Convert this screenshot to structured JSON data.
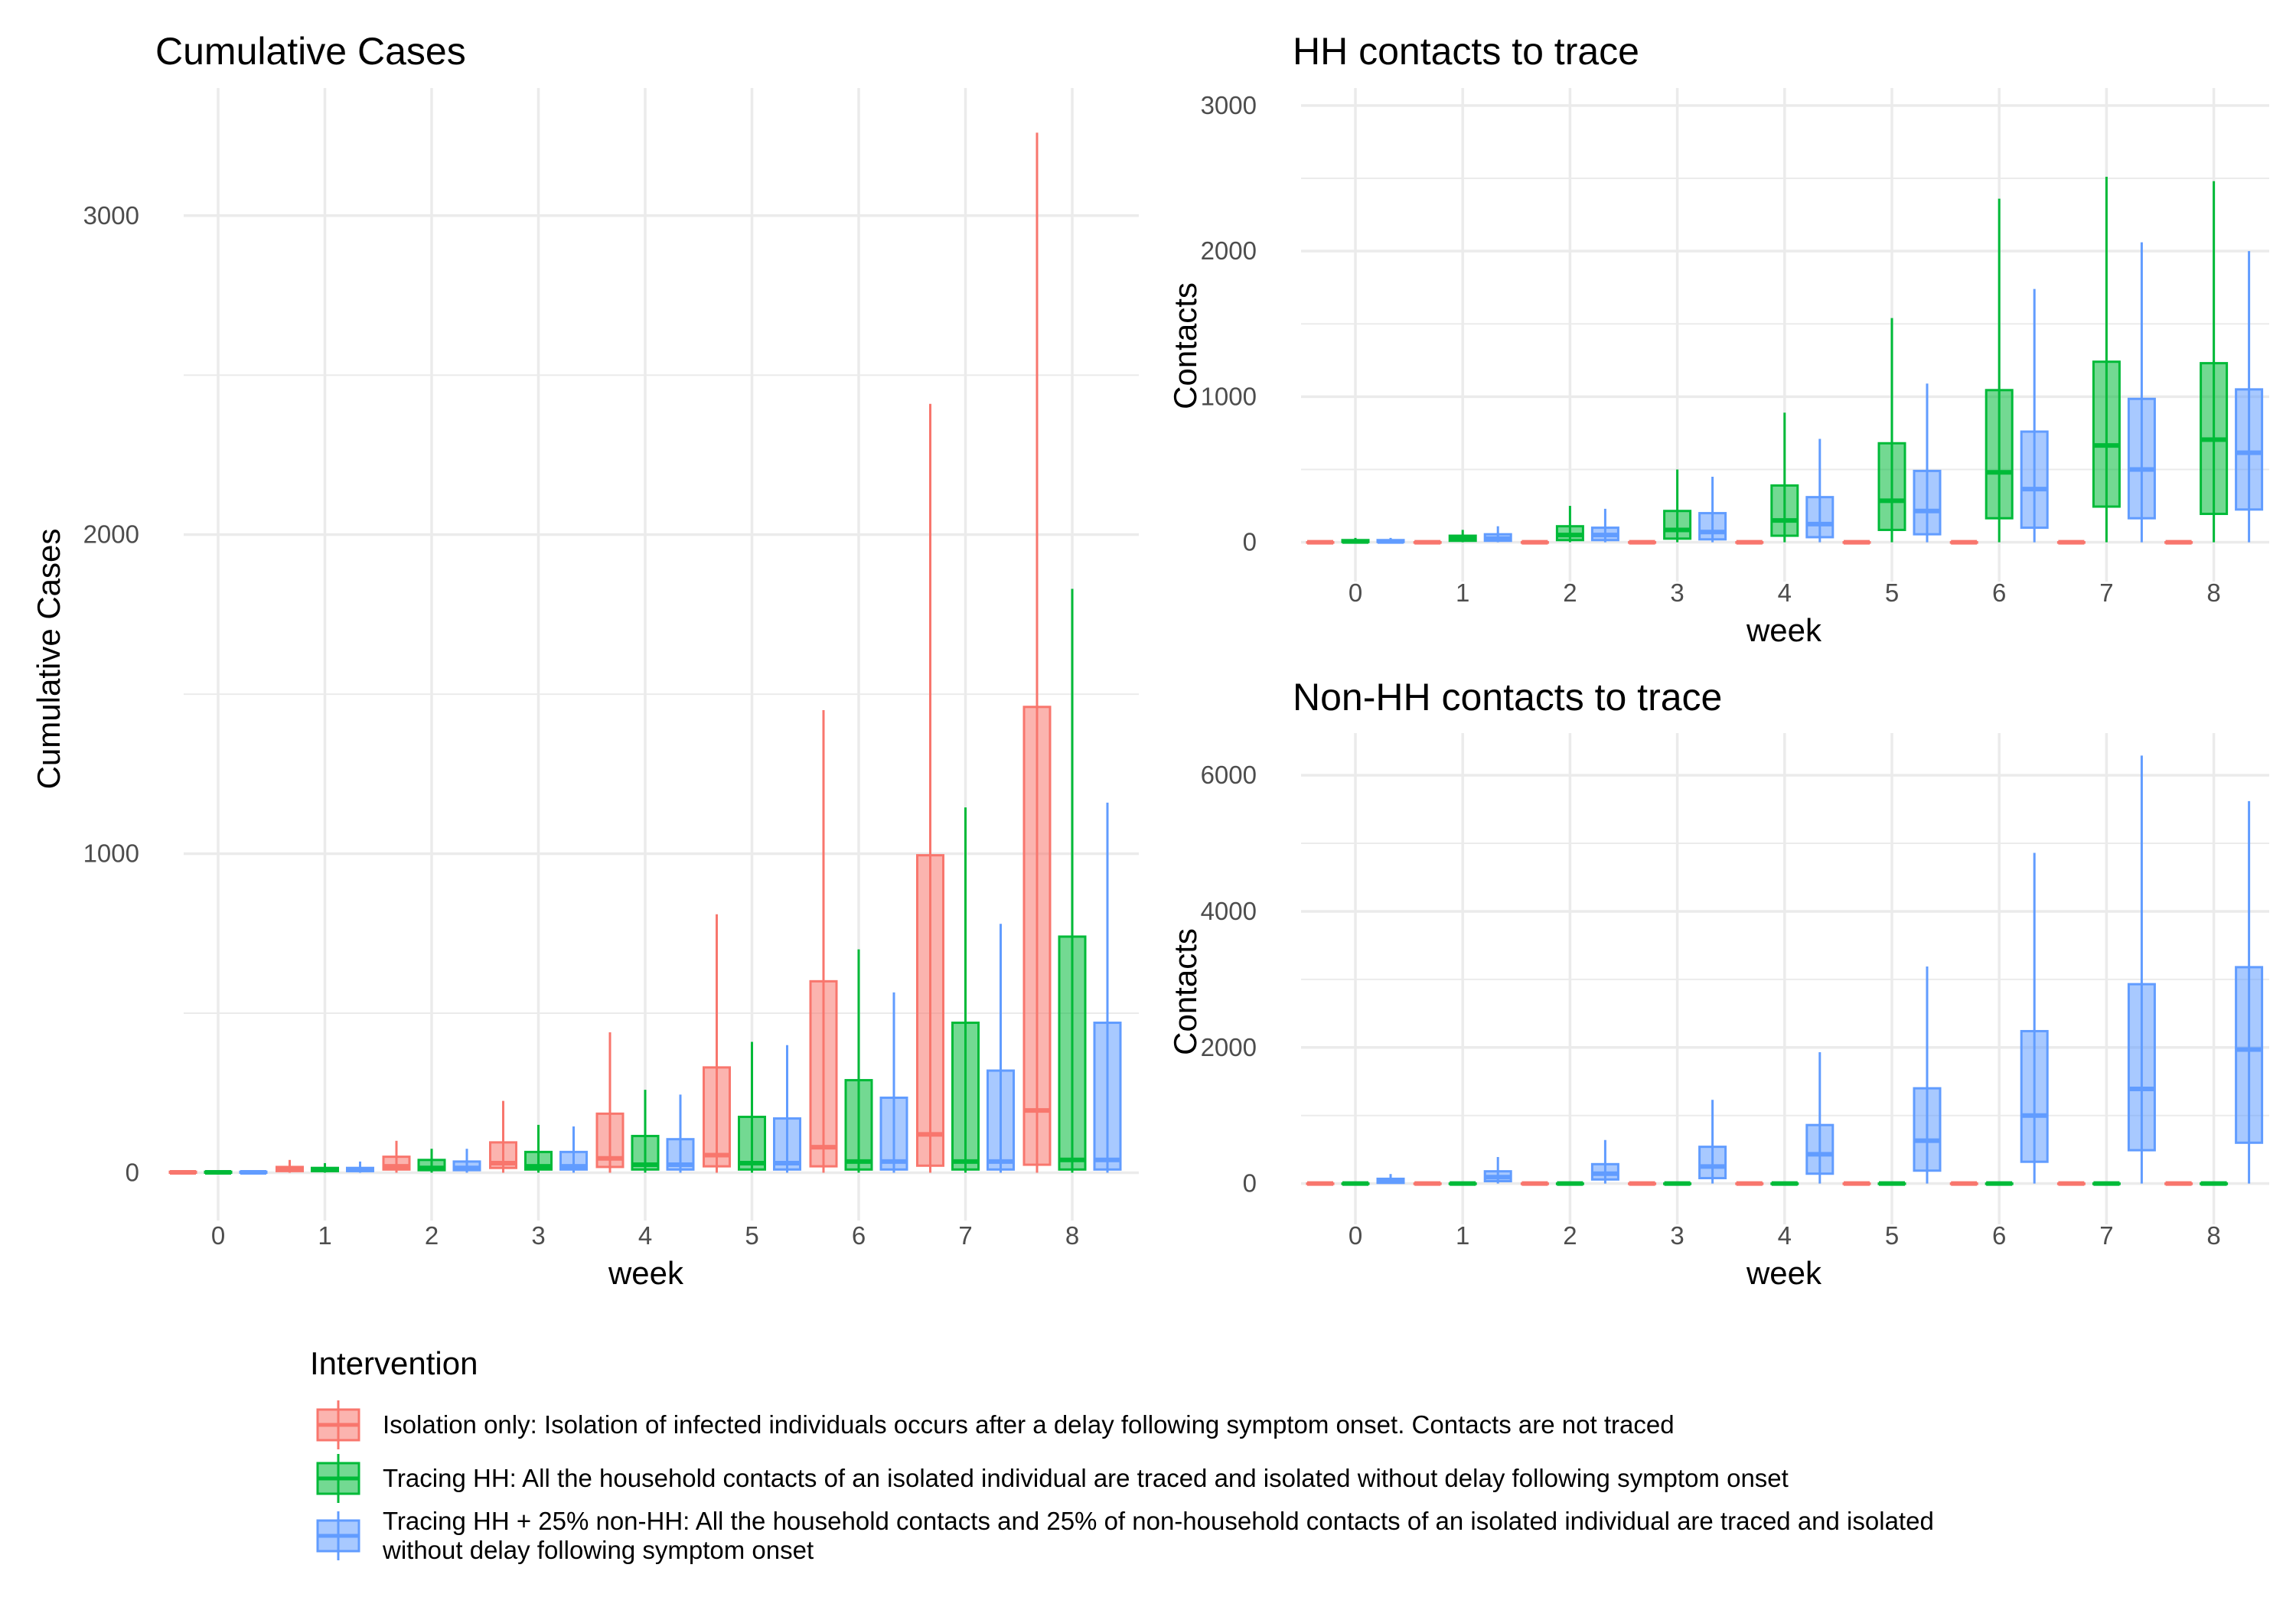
{
  "colors": {
    "isolation": "#F8766D",
    "tracing_hh": "#00BA38",
    "tracing_hh_nonhh": "#619CFF",
    "grid": "#EBEBEB"
  },
  "legend": {
    "title": "Intervention",
    "items": [
      {
        "key": "isolation",
        "lines": [
          "Isolation only: Isolation of infected individuals occurs after a delay following symptom onset. Contacts are not traced"
        ]
      },
      {
        "key": "tracing_hh",
        "lines": [
          "Tracing HH: All the household contacts of an isolated individual are traced and isolated without delay following symptom onset"
        ]
      },
      {
        "key": "tracing_hh_nonhh",
        "lines": [
          "Tracing HH + 25% non-HH: All the household contacts and 25% of non-household contacts of an isolated individual are traced and isolated",
          "without delay following symptom onset"
        ]
      }
    ]
  },
  "chart_data": [
    {
      "id": "cumulative",
      "type": "boxplot",
      "title": "Cumulative Cases",
      "xlabel": "week",
      "ylabel": "Cumulative Cases",
      "ylim": [
        -150,
        3400
      ],
      "yticks": [
        0,
        1000,
        2000,
        3000
      ],
      "ygrid_minor": [
        500,
        1500,
        2500
      ],
      "categories": [
        "0",
        "1",
        "2",
        "3",
        "4",
        "5",
        "6",
        "7",
        "8"
      ],
      "series": [
        {
          "key": "isolation",
          "boxes": [
            {
              "min": 0,
              "q1": 0,
              "median": 1,
              "q3": 3,
              "max": 6
            },
            {
              "min": 0,
              "q1": 5,
              "median": 10,
              "q3": 18,
              "max": 40
            },
            {
              "min": 0,
              "q1": 10,
              "median": 20,
              "q3": 50,
              "max": 100
            },
            {
              "min": 0,
              "q1": 15,
              "median": 30,
              "q3": 95,
              "max": 225
            },
            {
              "min": 0,
              "q1": 18,
              "median": 45,
              "q3": 185,
              "max": 440
            },
            {
              "min": 0,
              "q1": 20,
              "median": 55,
              "q3": 330,
              "max": 810
            },
            {
              "min": 0,
              "q1": 20,
              "median": 80,
              "q3": 600,
              "max": 1450
            },
            {
              "min": 0,
              "q1": 22,
              "median": 120,
              "q3": 995,
              "max": 2410
            },
            {
              "min": 0,
              "q1": 25,
              "median": 195,
              "q3": 1460,
              "max": 3260
            }
          ]
        },
        {
          "key": "tracing_hh",
          "boxes": [
            {
              "min": 0,
              "q1": 0,
              "median": 1,
              "q3": 3,
              "max": 6
            },
            {
              "min": 0,
              "q1": 5,
              "median": 9,
              "q3": 15,
              "max": 30
            },
            {
              "min": 0,
              "q1": 8,
              "median": 15,
              "q3": 40,
              "max": 75
            },
            {
              "min": 0,
              "q1": 10,
              "median": 20,
              "q3": 65,
              "max": 150
            },
            {
              "min": 0,
              "q1": 10,
              "median": 25,
              "q3": 115,
              "max": 260
            },
            {
              "min": 0,
              "q1": 10,
              "median": 30,
              "q3": 175,
              "max": 410
            },
            {
              "min": 0,
              "q1": 10,
              "median": 35,
              "q3": 290,
              "max": 700
            },
            {
              "min": 0,
              "q1": 10,
              "median": 35,
              "q3": 470,
              "max": 1145
            },
            {
              "min": 0,
              "q1": 10,
              "median": 40,
              "q3": 740,
              "max": 1830
            }
          ]
        },
        {
          "key": "tracing_hh_nonhh",
          "boxes": [
            {
              "min": 0,
              "q1": 0,
              "median": 1,
              "q3": 3,
              "max": 6
            },
            {
              "min": 0,
              "q1": 5,
              "median": 9,
              "q3": 15,
              "max": 35
            },
            {
              "min": 0,
              "q1": 8,
              "median": 15,
              "q3": 35,
              "max": 75
            },
            {
              "min": 0,
              "q1": 10,
              "median": 20,
              "q3": 65,
              "max": 145
            },
            {
              "min": 0,
              "q1": 10,
              "median": 25,
              "q3": 105,
              "max": 245
            },
            {
              "min": 0,
              "q1": 10,
              "median": 30,
              "q3": 170,
              "max": 400
            },
            {
              "min": 0,
              "q1": 10,
              "median": 35,
              "q3": 235,
              "max": 565
            },
            {
              "min": 0,
              "q1": 10,
              "median": 35,
              "q3": 320,
              "max": 780
            },
            {
              "min": 0,
              "q1": 10,
              "median": 40,
              "q3": 470,
              "max": 1160
            }
          ]
        }
      ]
    },
    {
      "id": "hh",
      "type": "boxplot",
      "title": "HH contacts to trace",
      "xlabel": "week",
      "ylabel": "Contacts",
      "ylim": [
        -270,
        3120
      ],
      "yticks": [
        0,
        1000,
        2000,
        3000
      ],
      "ygrid_minor": [
        500,
        1500,
        2500
      ],
      "categories": [
        "0",
        "1",
        "2",
        "3",
        "4",
        "5",
        "6",
        "7",
        "8"
      ],
      "series": [
        {
          "key": "isolation",
          "boxes": [
            {
              "min": 0,
              "q1": 0,
              "median": 0,
              "q3": 0,
              "max": 0
            },
            {
              "min": 0,
              "q1": 0,
              "median": 0,
              "q3": 0,
              "max": 0
            },
            {
              "min": 0,
              "q1": 0,
              "median": 0,
              "q3": 0,
              "max": 0
            },
            {
              "min": 0,
              "q1": 0,
              "median": 0,
              "q3": 0,
              "max": 0
            },
            {
              "min": 0,
              "q1": 0,
              "median": 0,
              "q3": 0,
              "max": 0
            },
            {
              "min": 0,
              "q1": 0,
              "median": 0,
              "q3": 0,
              "max": 0
            },
            {
              "min": 0,
              "q1": 0,
              "median": 0,
              "q3": 0,
              "max": 0
            },
            {
              "min": 0,
              "q1": 0,
              "median": 0,
              "q3": 0,
              "max": 0
            },
            {
              "min": 0,
              "q1": 0,
              "median": 0,
              "q3": 0,
              "max": 0
            }
          ]
        },
        {
          "key": "tracing_hh",
          "boxes": [
            {
              "min": 0,
              "q1": 2,
              "median": 5,
              "q3": 15,
              "max": 30
            },
            {
              "min": 0,
              "q1": 10,
              "median": 25,
              "q3": 45,
              "max": 85
            },
            {
              "min": 0,
              "q1": 15,
              "median": 50,
              "q3": 110,
              "max": 250
            },
            {
              "min": 0,
              "q1": 25,
              "median": 85,
              "q3": 215,
              "max": 500
            },
            {
              "min": 0,
              "q1": 45,
              "median": 150,
              "q3": 390,
              "max": 890
            },
            {
              "min": 0,
              "q1": 85,
              "median": 285,
              "q3": 680,
              "max": 1540
            },
            {
              "min": 0,
              "q1": 165,
              "median": 480,
              "q3": 1045,
              "max": 2360
            },
            {
              "min": 0,
              "q1": 245,
              "median": 665,
              "q3": 1240,
              "max": 2510
            },
            {
              "min": 0,
              "q1": 195,
              "median": 705,
              "q3": 1230,
              "max": 2480
            }
          ]
        },
        {
          "key": "tracing_hh_nonhh",
          "boxes": [
            {
              "min": 0,
              "q1": 2,
              "median": 5,
              "q3": 15,
              "max": 30
            },
            {
              "min": 0,
              "q1": 10,
              "median": 25,
              "q3": 55,
              "max": 110
            },
            {
              "min": 0,
              "q1": 15,
              "median": 50,
              "q3": 100,
              "max": 230
            },
            {
              "min": 0,
              "q1": 20,
              "median": 70,
              "q3": 200,
              "max": 450
            },
            {
              "min": 0,
              "q1": 35,
              "median": 125,
              "q3": 310,
              "max": 710
            },
            {
              "min": 0,
              "q1": 55,
              "median": 215,
              "q3": 490,
              "max": 1090
            },
            {
              "min": 0,
              "q1": 100,
              "median": 365,
              "q3": 760,
              "max": 1740
            },
            {
              "min": 0,
              "q1": 165,
              "median": 500,
              "q3": 985,
              "max": 2060
            },
            {
              "min": 0,
              "q1": 225,
              "median": 615,
              "q3": 1050,
              "max": 2000
            }
          ]
        }
      ]
    },
    {
      "id": "nonhh",
      "type": "boxplot",
      "title": "Non-HH contacts to trace",
      "xlabel": "week",
      "ylabel": "Contacts",
      "ylim": [
        -600,
        6620
      ],
      "yticks": [
        0,
        2000,
        4000,
        6000
      ],
      "ygrid_minor": [
        1000,
        3000,
        5000
      ],
      "categories": [
        "0",
        "1",
        "2",
        "3",
        "4",
        "5",
        "6",
        "7",
        "8"
      ],
      "series": [
        {
          "key": "isolation",
          "boxes": [
            {
              "min": 0,
              "q1": 0,
              "median": 0,
              "q3": 0,
              "max": 0
            },
            {
              "min": 0,
              "q1": 0,
              "median": 0,
              "q3": 0,
              "max": 0
            },
            {
              "min": 0,
              "q1": 0,
              "median": 0,
              "q3": 0,
              "max": 0
            },
            {
              "min": 0,
              "q1": 0,
              "median": 0,
              "q3": 0,
              "max": 0
            },
            {
              "min": 0,
              "q1": 0,
              "median": 0,
              "q3": 0,
              "max": 0
            },
            {
              "min": 0,
              "q1": 0,
              "median": 0,
              "q3": 0,
              "max": 0
            },
            {
              "min": 0,
              "q1": 0,
              "median": 0,
              "q3": 0,
              "max": 0
            },
            {
              "min": 0,
              "q1": 0,
              "median": 0,
              "q3": 0,
              "max": 0
            },
            {
              "min": 0,
              "q1": 0,
              "median": 0,
              "q3": 0,
              "max": 0
            }
          ]
        },
        {
          "key": "tracing_hh",
          "boxes": [
            {
              "min": 0,
              "q1": 0,
              "median": 0,
              "q3": 0,
              "max": 0
            },
            {
              "min": 0,
              "q1": 0,
              "median": 0,
              "q3": 0,
              "max": 0
            },
            {
              "min": 0,
              "q1": 0,
              "median": 0,
              "q3": 0,
              "max": 0
            },
            {
              "min": 0,
              "q1": 0,
              "median": 0,
              "q3": 0,
              "max": 0
            },
            {
              "min": 0,
              "q1": 0,
              "median": 0,
              "q3": 0,
              "max": 0
            },
            {
              "min": 0,
              "q1": 0,
              "median": 0,
              "q3": 0,
              "max": 0
            },
            {
              "min": 0,
              "q1": 0,
              "median": 0,
              "q3": 0,
              "max": 0
            },
            {
              "min": 0,
              "q1": 0,
              "median": 0,
              "q3": 0,
              "max": 0
            },
            {
              "min": 0,
              "q1": 0,
              "median": 0,
              "q3": 0,
              "max": 0
            }
          ]
        },
        {
          "key": "tracing_hh_nonhh",
          "boxes": [
            {
              "min": 0,
              "q1": 10,
              "median": 30,
              "q3": 70,
              "max": 140
            },
            {
              "min": 0,
              "q1": 35,
              "median": 95,
              "q3": 180,
              "max": 390
            },
            {
              "min": 0,
              "q1": 60,
              "median": 145,
              "q3": 285,
              "max": 640
            },
            {
              "min": 0,
              "q1": 80,
              "median": 250,
              "q3": 540,
              "max": 1230
            },
            {
              "min": 0,
              "q1": 145,
              "median": 430,
              "q3": 860,
              "max": 1930
            },
            {
              "min": 0,
              "q1": 190,
              "median": 630,
              "q3": 1400,
              "max": 3190
            },
            {
              "min": 0,
              "q1": 320,
              "median": 1000,
              "q3": 2240,
              "max": 4860
            },
            {
              "min": 0,
              "q1": 490,
              "median": 1390,
              "q3": 2930,
              "max": 6290
            },
            {
              "min": 0,
              "q1": 600,
              "median": 1970,
              "q3": 3180,
              "max": 5620
            }
          ]
        }
      ]
    }
  ]
}
